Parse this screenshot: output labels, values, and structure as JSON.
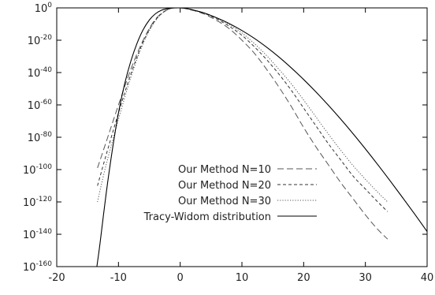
{
  "chart_data": {
    "type": "line",
    "title": "",
    "xlabel": "",
    "ylabel": "",
    "xlim": [
      -20,
      40
    ],
    "ylim_log10": [
      -160,
      0
    ],
    "y_scale": "log",
    "grid": false,
    "legend_position": "right-center",
    "x_ticks": [
      -20,
      -10,
      0,
      10,
      20,
      30,
      40
    ],
    "y_ticks": [
      {
        "base": "10",
        "exp": "0",
        "value_log10": 0
      },
      {
        "base": "10",
        "exp": "-20",
        "value_log10": -20
      },
      {
        "base": "10",
        "exp": "-40",
        "value_log10": -40
      },
      {
        "base": "10",
        "exp": "-60",
        "value_log10": -60
      },
      {
        "base": "10",
        "exp": "-80",
        "value_log10": -80
      },
      {
        "base": "10",
        "exp": "-100",
        "value_log10": -100
      },
      {
        "base": "10",
        "exp": "-120",
        "value_log10": -120
      },
      {
        "base": "10",
        "exp": "-140",
        "value_log10": -140
      },
      {
        "base": "10",
        "exp": "-160",
        "value_log10": -160
      }
    ],
    "series": [
      {
        "name": "Our Method N=10",
        "style": "dashed-long",
        "color": "#555555",
        "points_log10": [
          [
            -13.4,
            -99
          ],
          [
            -12,
            -83
          ],
          [
            -10,
            -60
          ],
          [
            -8,
            -38
          ],
          [
            -6,
            -20
          ],
          [
            -4,
            -7
          ],
          [
            -2,
            -1
          ],
          [
            0,
            0
          ],
          [
            2,
            -1.5
          ],
          [
            4,
            -4
          ],
          [
            6,
            -8
          ],
          [
            8,
            -13
          ],
          [
            10,
            -20
          ],
          [
            12,
            -28
          ],
          [
            14,
            -38
          ],
          [
            16,
            -49
          ],
          [
            18,
            -61
          ],
          [
            20,
            -74
          ],
          [
            22,
            -86
          ],
          [
            24,
            -97
          ],
          [
            26,
            -108
          ],
          [
            28,
            -118
          ],
          [
            30,
            -128
          ],
          [
            32,
            -137
          ],
          [
            33.6,
            -143
          ]
        ]
      },
      {
        "name": "Our Method N=20",
        "style": "dashed-short",
        "color": "#333333",
        "points_log10": [
          [
            -13.4,
            -110
          ],
          [
            -12,
            -91
          ],
          [
            -10,
            -65
          ],
          [
            -8,
            -41
          ],
          [
            -6,
            -21
          ],
          [
            -4,
            -7.5
          ],
          [
            -2,
            -1
          ],
          [
            0,
            0
          ],
          [
            2,
            -1.3
          ],
          [
            4,
            -3.5
          ],
          [
            6,
            -7
          ],
          [
            8,
            -11.5
          ],
          [
            10,
            -17
          ],
          [
            12,
            -24
          ],
          [
            14,
            -32
          ],
          [
            16,
            -41
          ],
          [
            18,
            -51
          ],
          [
            20,
            -62
          ],
          [
            22,
            -73
          ],
          [
            24,
            -84
          ],
          [
            26,
            -94
          ],
          [
            28,
            -104
          ],
          [
            30,
            -112
          ],
          [
            32,
            -120
          ],
          [
            33.6,
            -126
          ]
        ]
      },
      {
        "name": "Our Method N=30",
        "style": "dotted",
        "color": "#555555",
        "points_log10": [
          [
            -13.4,
            -120
          ],
          [
            -12,
            -97
          ],
          [
            -10,
            -69
          ],
          [
            -8,
            -43
          ],
          [
            -6,
            -22
          ],
          [
            -4,
            -8
          ],
          [
            -2,
            -1
          ],
          [
            0,
            0
          ],
          [
            2,
            -1.2
          ],
          [
            4,
            -3.2
          ],
          [
            6,
            -6.5
          ],
          [
            8,
            -10.5
          ],
          [
            10,
            -15.5
          ],
          [
            12,
            -22
          ],
          [
            14,
            -29.5
          ],
          [
            16,
            -38
          ],
          [
            18,
            -47
          ],
          [
            20,
            -57
          ],
          [
            22,
            -67.5
          ],
          [
            24,
            -78
          ],
          [
            26,
            -88
          ],
          [
            28,
            -97.5
          ],
          [
            30,
            -106
          ],
          [
            32,
            -114
          ],
          [
            33.6,
            -120
          ]
        ]
      },
      {
        "name": "Tracy-Widom distribution",
        "style": "solid",
        "color": "#000000",
        "points_log10": [
          [
            -13.5,
            -160
          ],
          [
            -13,
            -146
          ],
          [
            -12,
            -115
          ],
          [
            -11,
            -88
          ],
          [
            -10,
            -65
          ],
          [
            -9,
            -47
          ],
          [
            -8,
            -33
          ],
          [
            -7,
            -22
          ],
          [
            -6,
            -13.5
          ],
          [
            -5,
            -7.5
          ],
          [
            -4,
            -3.6
          ],
          [
            -3,
            -1.4
          ],
          [
            -2,
            -0.4
          ],
          [
            -1,
            -0.05
          ],
          [
            0,
            0
          ],
          [
            1,
            -0.4
          ],
          [
            2,
            -1.2
          ],
          [
            4,
            -3.3
          ],
          [
            6,
            -6.3
          ],
          [
            8,
            -9.8
          ],
          [
            10,
            -14
          ],
          [
            12,
            -18.8
          ],
          [
            14,
            -24.3
          ],
          [
            16,
            -30.4
          ],
          [
            18,
            -37.1
          ],
          [
            20,
            -44.3
          ],
          [
            22,
            -52
          ],
          [
            24,
            -60.2
          ],
          [
            26,
            -68.8
          ],
          [
            28,
            -77.8
          ],
          [
            30,
            -87.2
          ],
          [
            32,
            -96.9
          ],
          [
            34,
            -106.9
          ],
          [
            36,
            -117.2
          ],
          [
            38,
            -127.6
          ],
          [
            40,
            -138.3
          ]
        ]
      }
    ]
  }
}
